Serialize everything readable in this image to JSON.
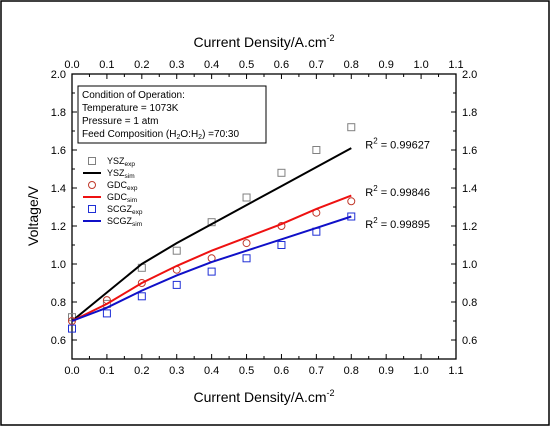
{
  "chart_data": {
    "type": "scatter",
    "xlabel": "Current Density/A.cm",
    "xlabel_sup": "-2",
    "ylabel": "Voltage/V",
    "xlim": [
      0.0,
      1.1
    ],
    "ylim": [
      0.5,
      2.0
    ],
    "x_ticks": [
      "0.0",
      "0.1",
      "0.2",
      "0.3",
      "0.4",
      "0.5",
      "0.6",
      "0.7",
      "0.8",
      "0.9",
      "1.0",
      "1.1"
    ],
    "y_ticks": [
      "0.6",
      "0.8",
      "1.0",
      "1.2",
      "1.4",
      "1.6",
      "1.8",
      "2.0"
    ],
    "conditions": {
      "title": "Condition of Operation:",
      "temperature": "Temperature = 1073K",
      "pressure": "Pressure = 1 atm",
      "feed_prefix": "Feed Composition (H",
      "feed_sub1": "2",
      "feed_mid": "O:H",
      "feed_sub2": "2",
      "feed_suffix": ") =70:30"
    },
    "series": [
      {
        "name": "YSZ",
        "sub": "exp",
        "kind": "marker",
        "marker": "square",
        "color": "#808080",
        "x": [
          0.0,
          0.1,
          0.2,
          0.3,
          0.4,
          0.5,
          0.6,
          0.7,
          0.8
        ],
        "y": [
          0.72,
          0.79,
          0.98,
          1.07,
          1.22,
          1.35,
          1.48,
          1.6,
          1.72
        ]
      },
      {
        "name": "YSZ",
        "sub": "sim",
        "kind": "line",
        "color": "#000000",
        "x": [
          0.0,
          0.1,
          0.2,
          0.3,
          0.4,
          0.5,
          0.6,
          0.7,
          0.8
        ],
        "y": [
          0.7,
          0.85,
          1.0,
          1.11,
          1.21,
          1.31,
          1.41,
          1.51,
          1.61
        ]
      },
      {
        "name": "GDC",
        "sub": "exp",
        "kind": "marker",
        "marker": "circle",
        "color": "#c0392b",
        "x": [
          0.0,
          0.1,
          0.2,
          0.3,
          0.4,
          0.5,
          0.6,
          0.7,
          0.8
        ],
        "y": [
          0.7,
          0.81,
          0.9,
          0.97,
          1.03,
          1.11,
          1.2,
          1.27,
          1.33
        ]
      },
      {
        "name": "GDC",
        "sub": "sim",
        "kind": "line",
        "color": "#ee1111",
        "x": [
          0.0,
          0.1,
          0.2,
          0.3,
          0.4,
          0.5,
          0.6,
          0.7,
          0.8
        ],
        "y": [
          0.7,
          0.79,
          0.9,
          0.99,
          1.07,
          1.14,
          1.21,
          1.29,
          1.36
        ]
      },
      {
        "name": "SCGZ",
        "sub": "exp",
        "kind": "marker",
        "marker": "square",
        "color": "#1f2fd6",
        "x": [
          0.0,
          0.1,
          0.2,
          0.3,
          0.4,
          0.5,
          0.6,
          0.7,
          0.8
        ],
        "y": [
          0.66,
          0.74,
          0.83,
          0.89,
          0.96,
          1.03,
          1.1,
          1.17,
          1.25
        ]
      },
      {
        "name": "SCGZ",
        "sub": "sim",
        "kind": "line",
        "color": "#1010c8",
        "x": [
          0.0,
          0.1,
          0.2,
          0.3,
          0.4,
          0.5,
          0.6,
          0.7,
          0.8
        ],
        "y": [
          0.7,
          0.77,
          0.86,
          0.94,
          1.01,
          1.07,
          1.13,
          1.19,
          1.25
        ]
      }
    ],
    "annotations": [
      {
        "label": "R",
        "sup": "2",
        "text": " = 0.99627",
        "x": 0.84,
        "y": 1.63
      },
      {
        "label": "R",
        "sup": "2",
        "text": " = 0.99846",
        "x": 0.84,
        "y": 1.38
      },
      {
        "label": "R",
        "sup": "2",
        "text": " = 0.99895",
        "x": 0.84,
        "y": 1.21
      }
    ],
    "grid": false,
    "legend_position": "left"
  }
}
